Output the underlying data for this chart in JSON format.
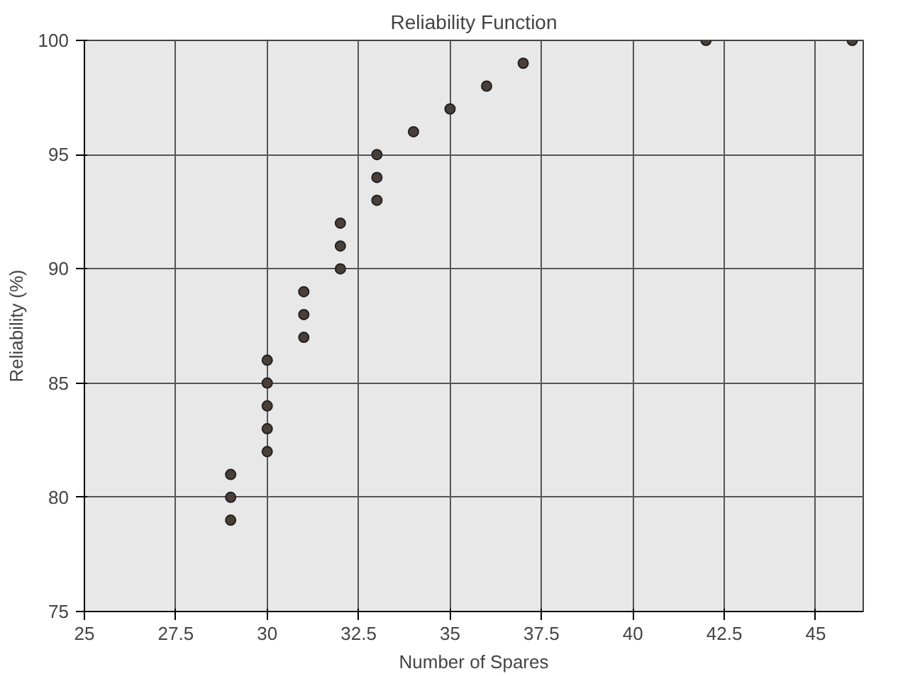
{
  "chart_data": {
    "type": "scatter",
    "title": "Reliability Function",
    "xlabel": "Number of Spares",
    "ylabel": "Reliability (%)",
    "x": [
      29,
      29,
      29,
      30,
      30,
      30,
      30,
      30,
      31,
      31,
      31,
      32,
      32,
      32,
      33,
      33,
      33,
      34,
      35,
      36,
      37,
      42,
      46
    ],
    "series": [
      {
        "color": "#4a3f38",
        "values": [
          81,
          80,
          79,
          86,
          85,
          84,
          83,
          82,
          89,
          88,
          87,
          92,
          91,
          90,
          95,
          94,
          93,
          96,
          97,
          98,
          99,
          100,
          100
        ]
      }
    ],
    "xlim": [
      25,
      46.3
    ],
    "ylim": [
      75,
      100
    ],
    "xticks": [
      25,
      27.5,
      30,
      32.5,
      35,
      37.5,
      40,
      42.5,
      45
    ],
    "yticks": [
      75,
      80,
      85,
      90,
      95,
      100
    ],
    "grid": true,
    "marker": "circle"
  }
}
